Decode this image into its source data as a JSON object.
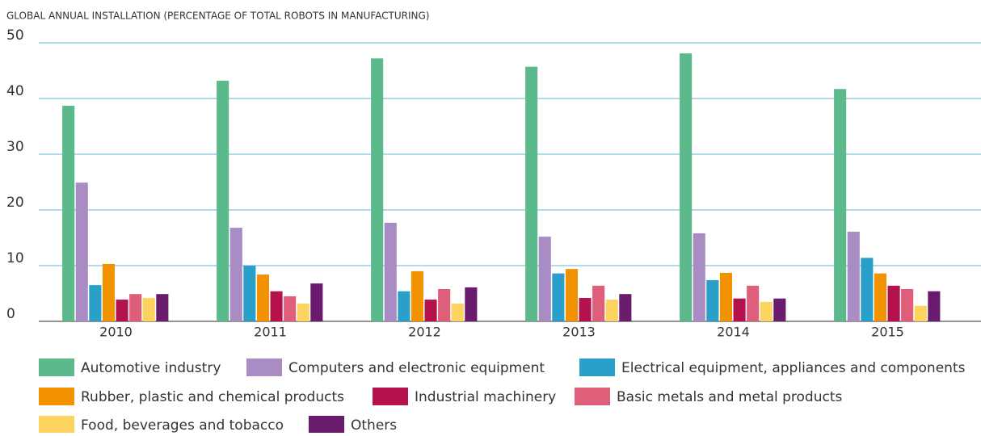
{
  "chart_data": {
    "type": "bar",
    "title": "GLOBAL ANNUAL INSTALLATION (PERCENTAGE OF TOTAL ROBOTS IN MANUFACTURING)",
    "categories": [
      "2010",
      "2011",
      "2012",
      "2013",
      "2014",
      "2015"
    ],
    "series": [
      {
        "name": "Automotive industry",
        "color": "#5cb98b",
        "values": [
          38.7,
          43.2,
          47.2,
          45.7,
          48.1,
          41.7
        ]
      },
      {
        "name": "Computers and electronic equipment",
        "color": "#a98cc4",
        "values": [
          24.9,
          16.8,
          17.7,
          15.2,
          15.8,
          16.1
        ]
      },
      {
        "name": "Electrical equipment, appliances and components",
        "color": "#2a9fc9",
        "values": [
          6.5,
          10.0,
          5.4,
          8.6,
          7.4,
          11.4
        ]
      },
      {
        "name": "Rubber, plastic and chemical products",
        "color": "#f39200",
        "values": [
          10.3,
          8.4,
          9.0,
          9.4,
          8.7,
          8.6
        ]
      },
      {
        "name": "Industrial machinery",
        "color": "#b5124d",
        "values": [
          3.9,
          5.4,
          3.9,
          4.2,
          4.1,
          6.4
        ]
      },
      {
        "name": "Basic metals and metal products",
        "color": "#df5f7b",
        "values": [
          4.9,
          4.5,
          5.8,
          6.4,
          6.4,
          5.8
        ]
      },
      {
        "name": "Food, beverages and tobacco",
        "color": "#fdd35f",
        "values": [
          4.2,
          3.2,
          3.2,
          3.9,
          3.5,
          2.8
        ]
      },
      {
        "name": "Others",
        "color": "#6a1b6e",
        "values": [
          4.9,
          6.8,
          6.1,
          4.9,
          4.1,
          5.4
        ]
      }
    ],
    "ylim": [
      0,
      50
    ],
    "yticks": [
      0,
      10,
      20,
      30,
      40,
      50
    ],
    "grid": true,
    "legend": "bottom"
  }
}
